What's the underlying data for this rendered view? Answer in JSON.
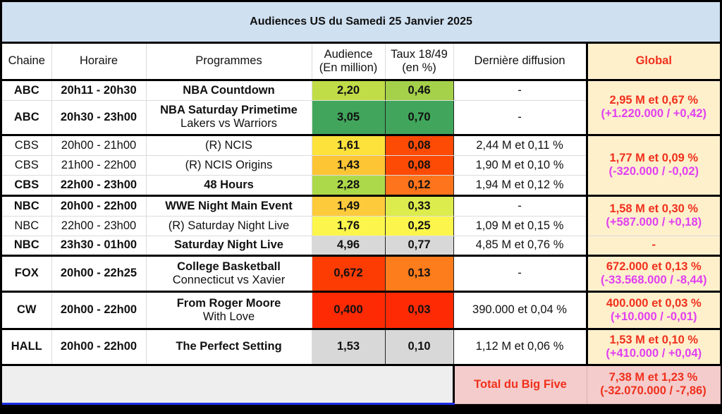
{
  "title": "Audiences US du Samedi 25 Janvier 2025",
  "headers": {
    "chaine": "Chaine",
    "horaire": "Horaire",
    "programmes": "Programmes",
    "audience_1": "Audience",
    "audience_2": "(En million)",
    "taux_1": "Taux 18/49",
    "taux_2": "(en %)",
    "derniere": "Dernière diffusion",
    "global": "Global"
  },
  "rows": [
    {
      "chaine": "ABC",
      "horaire": "20h11 - 20h30",
      "programme": "NBA Countdown",
      "programme_sub": "",
      "audience": "2,20",
      "taux": "0,46",
      "derniere": "-",
      "bold": true,
      "audience_color": "#c0dd48",
      "taux_color": "#a4d04a"
    },
    {
      "chaine": "ABC",
      "horaire": "20h30 - 23h00",
      "programme": "NBA Saturday Primetime",
      "programme_sub": "Lakers vs Warriors",
      "audience": "3,05",
      "taux": "0,70",
      "derniere": "-",
      "bold": true,
      "audience_color": "#41a65c",
      "taux_color": "#41a65c"
    },
    {
      "chaine": "CBS",
      "horaire": "20h00 - 21h00",
      "programme": "(R) NCIS",
      "programme_sub": "",
      "audience": "1,61",
      "taux": "0,08",
      "derniere": "2,44 M et 0,11 %",
      "bold": false,
      "audience_color": "#fde23c",
      "taux_color": "#fd4a04"
    },
    {
      "chaine": "CBS",
      "horaire": "21h00 - 22h00",
      "programme": "(R) NCIS Origins",
      "programme_sub": "",
      "audience": "1,43",
      "taux": "0,08",
      "derniere": "1,90 M et 0,10 %",
      "bold": false,
      "audience_color": "#fdc434",
      "taux_color": "#fd4a04"
    },
    {
      "chaine": "CBS",
      "horaire": "22h00 - 23h00",
      "programme": "48 Hours",
      "programme_sub": "",
      "audience": "2,28",
      "taux": "0,12",
      "derniere": "1,94 M et 0,12 %",
      "bold": true,
      "audience_color": "#acd94a",
      "taux_color": "#fd741c"
    },
    {
      "chaine": "NBC",
      "horaire": "20h00 - 22h00",
      "programme": "WWE Night Main Event",
      "programme_sub": "",
      "audience": "1,49",
      "taux": "0,33",
      "derniere": "-",
      "bold": true,
      "audience_color": "#fdca3c",
      "taux_color": "#dcec4c"
    },
    {
      "chaine": "NBC",
      "horaire": "22h00 - 23h00",
      "programme": "(R) Saturday Night Live",
      "programme_sub": "",
      "audience": "1,76",
      "taux": "0,25",
      "derniere": "1,09 M et 0,15 %",
      "bold": false,
      "audience_color": "#fcf64c",
      "taux_color": "#fcf64c"
    },
    {
      "chaine": "NBC",
      "horaire": "23h30 - 01h00",
      "programme": "Saturday Night Live",
      "programme_sub": "",
      "audience": "4,96",
      "taux": "0,77",
      "derniere": "4,85 M et 0,76 %",
      "bold": true,
      "audience_color": "#d8d8d8",
      "taux_color": "#d8d8d8"
    },
    {
      "chaine": "FOX",
      "horaire": "20h00 - 22h25",
      "programme": "College Basketball",
      "programme_sub": "Connecticut vs Xavier",
      "audience": "0,672",
      "taux": "0,13",
      "derniere": "-",
      "bold": true,
      "audience_color": "#fd3c04",
      "taux_color": "#fd7c1c"
    },
    {
      "chaine": "CW",
      "horaire": "20h00 - 22h00",
      "programme": "From Roger Moore",
      "programme_sub": "With Love",
      "audience": "0,400",
      "taux": "0,03",
      "derniere": "390.000 et 0,04 %",
      "bold": true,
      "audience_color": "#fd2a04",
      "taux_color": "#fd2a04"
    },
    {
      "chaine": "HALL",
      "horaire": "20h00 - 22h00",
      "programme": "The Perfect Setting",
      "programme_sub": "",
      "audience": "1,53",
      "taux": "0,10",
      "derniere": "1,12 M et 0,06 %",
      "bold": true,
      "audience_color": "#d8d8d8",
      "taux_color": "#d8d8d8"
    }
  ],
  "global": {
    "abc": {
      "main": "2,95 M et 0,67 %",
      "diff": "(+1.220.000 / +0,42)"
    },
    "cbs": {
      "main": "1,77 M et 0,09 %",
      "diff": "(-320.000 / -0,02)"
    },
    "nbc": {
      "main": "1,58 M et 0,30 %",
      "diff": "(+587.000 / +0,18)"
    },
    "nbc_snl": {
      "main": "-"
    },
    "fox": {
      "main": "672.000 et 0,13 %",
      "diff": "(-33.568.000 / -8,44)"
    },
    "cw": {
      "main": "400.000 et 0,03 %",
      "diff": "(+10.000 / -0,01)"
    },
    "hall": {
      "main": "1,53 M et 0,10 %",
      "diff": "(+410.000 / +0,04)"
    }
  },
  "total": {
    "label": "Total du Big Five",
    "main": "7,38 M et 1,23 %",
    "diff": "(-32.070.000 / -7,86)"
  }
}
